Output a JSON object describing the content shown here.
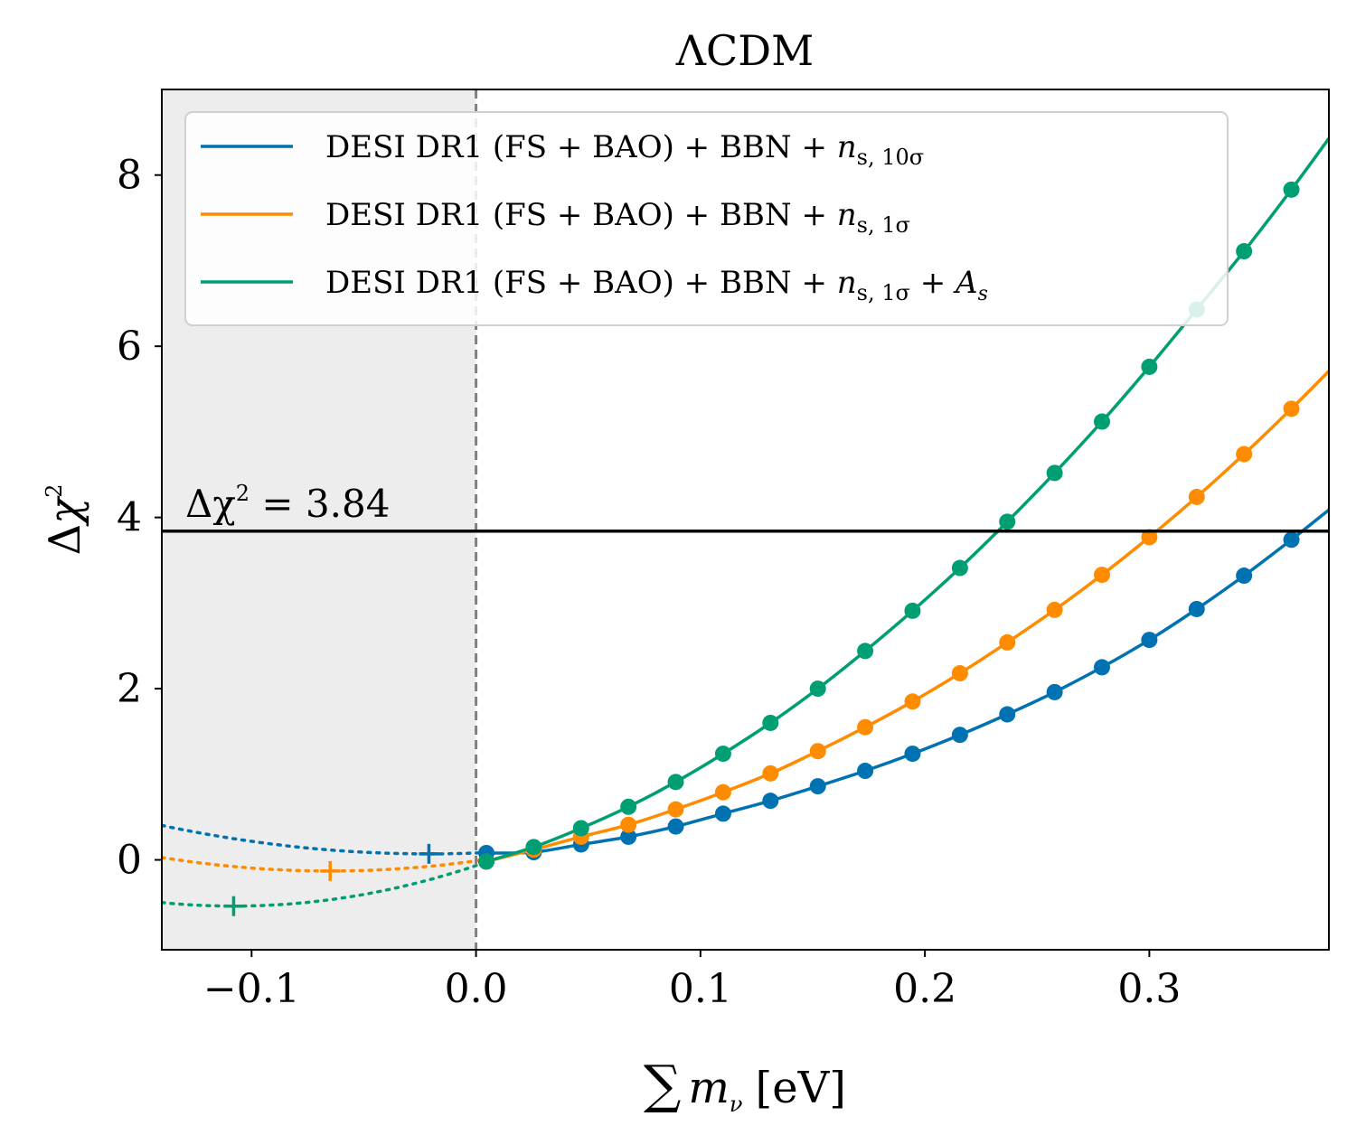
{
  "chart_data": {
    "type": "line",
    "title": "ΛCDM",
    "xlabel": "∑ m_ν [eV]",
    "xlabel_parts": {
      "sum": "∑",
      "m": "m",
      "nu": "ν",
      "unit": "[eV]"
    },
    "ylabel": "Δχ²",
    "ylabel_parts": {
      "delta": "Δ",
      "chi": "χ",
      "sup": "2"
    },
    "xlim": [
      -0.14,
      0.38
    ],
    "ylim": [
      -1.05,
      9.0
    ],
    "xticks": [
      -0.1,
      0.0,
      0.1,
      0.2,
      0.3
    ],
    "xtick_labels": [
      "−0.1",
      "0.0",
      "0.1",
      "0.2",
      "0.3"
    ],
    "yticks": [
      0,
      2,
      4,
      6,
      8
    ],
    "ytick_labels": [
      "0",
      "2",
      "4",
      "6",
      "8"
    ],
    "shaded_region": {
      "x_from": -0.14,
      "x_to": 0.0,
      "color": "#ededed"
    },
    "vline": {
      "x": 0.0,
      "style": "dashed",
      "color": "#808080"
    },
    "hline": {
      "y": 3.84,
      "color": "#000000"
    },
    "annotation": {
      "lhs": "Δχ",
      "sup": "2",
      "rhs": " = 3.84"
    },
    "legend_position": "top-left",
    "x_points": [
      0.0046,
      0.0257,
      0.0468,
      0.0679,
      0.089,
      0.1101,
      0.1312,
      0.1523,
      0.1734,
      0.1945,
      0.2156,
      0.2367,
      0.2578,
      0.2789,
      0.3,
      0.3211,
      0.3422,
      0.3633
    ],
    "series": [
      {
        "name": "DESI DR1 (FS + BAO) + BBN + n_s, 10σ",
        "legend_main": "DESI DR1 (FS + BAO) + BBN + ",
        "legend_var": "n",
        "legend_sub": "s, 10σ",
        "legend_tail": "",
        "legend_tail_var": "",
        "legend_tail_sub": "",
        "color": "#0072b2",
        "fit": {
          "min_x": -0.021,
          "min_y": 0.07,
          "curvature": 23.5
        },
        "minimum_marker": [
          -0.021,
          0.07
        ],
        "values": [
          0.08,
          0.09,
          0.18,
          0.27,
          0.39,
          0.54,
          0.69,
          0.86,
          1.04,
          1.24,
          1.46,
          1.7,
          1.96,
          2.25,
          2.57,
          2.93,
          3.32,
          3.74
        ]
      },
      {
        "name": "DESI DR1 (FS + BAO) + BBN + n_s, 1σ",
        "legend_main": "DESI DR1 (FS + BAO) + BBN + ",
        "legend_var": "n",
        "legend_sub": "s, 1σ",
        "legend_tail": "",
        "legend_tail_var": "",
        "legend_tail_sub": "",
        "color": "#ff8c00",
        "fit": {
          "min_x": -0.065,
          "min_y": -0.13,
          "curvature": 28.0
        },
        "minimum_marker": [
          -0.065,
          -0.13
        ],
        "values": [
          -0.02,
          0.12,
          0.27,
          0.41,
          0.59,
          0.79,
          1.01,
          1.27,
          1.55,
          1.85,
          2.18,
          2.54,
          2.92,
          3.33,
          3.77,
          4.24,
          4.74,
          5.27
        ]
      },
      {
        "name": "DESI DR1 (FS + BAO) + BBN + n_s, 1σ + A_s",
        "legend_main": "DESI DR1 (FS + BAO) + BBN + ",
        "legend_var": "n",
        "legend_sub": "s, 1σ",
        "legend_tail": " + ",
        "legend_tail_var": "A",
        "legend_tail_sub": "s",
        "color": "#009e73",
        "fit": {
          "min_x": -0.108,
          "min_y": -0.54,
          "curvature": 40.5
        },
        "minimum_marker": [
          -0.108,
          -0.54
        ],
        "values": [
          -0.02,
          0.15,
          0.37,
          0.62,
          0.91,
          1.24,
          1.6,
          2.0,
          2.44,
          2.91,
          3.41,
          3.95,
          4.52,
          5.12,
          5.76,
          6.43,
          7.11,
          7.83
        ]
      }
    ]
  }
}
